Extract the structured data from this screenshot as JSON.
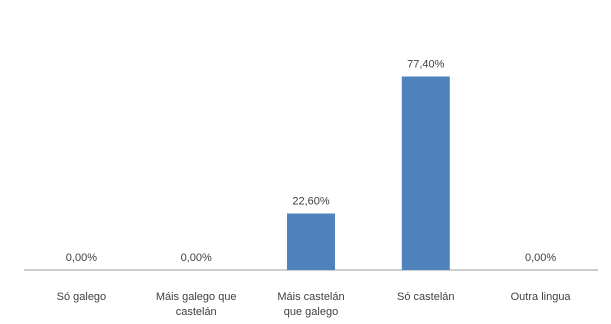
{
  "chart_data": {
    "type": "bar",
    "categories": [
      [
        "Só galego"
      ],
      [
        "Máis galego que",
        "castelán"
      ],
      [
        "Máis castelán",
        "que galego"
      ],
      [
        "Só castelán"
      ],
      [
        "Outra lingua"
      ]
    ],
    "values": [
      0.0,
      0.0,
      22.6,
      77.4,
      0.0
    ],
    "data_labels": [
      "0,00%",
      "0,00%",
      "22,60%",
      "77,40%",
      "0,00%"
    ],
    "bar_color": "#4f81bd",
    "ylim": [
      0,
      100
    ],
    "grid": false,
    "legend": "none"
  }
}
